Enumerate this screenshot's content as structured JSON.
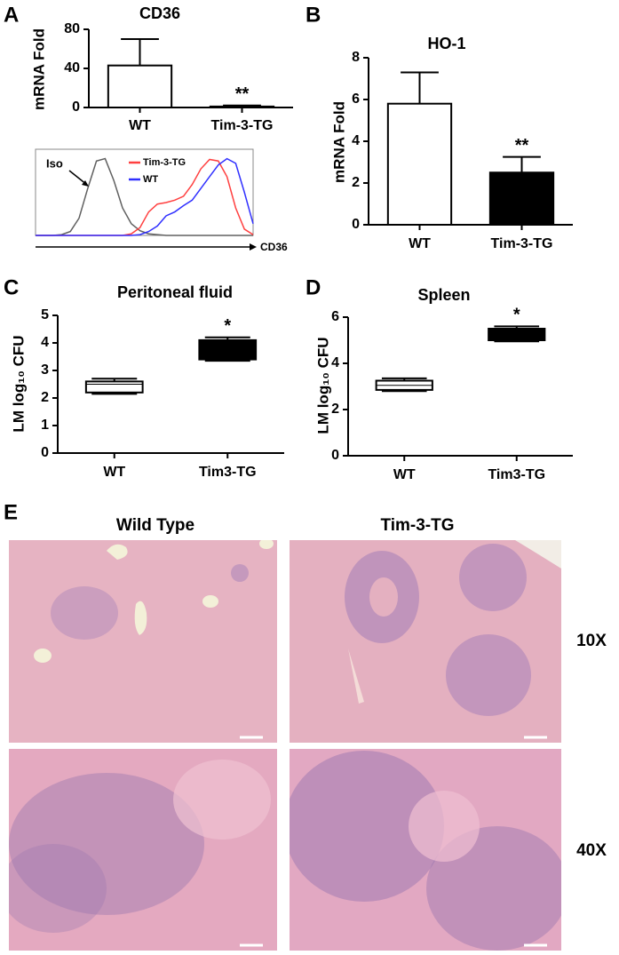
{
  "chart_data": [
    {
      "type": "bar",
      "panel": "A",
      "title": "CD36",
      "ylabel": "mRNA Fold",
      "categories": [
        "WT",
        "Tim-3-TG"
      ],
      "values": [
        43,
        1
      ],
      "errors": [
        27,
        1
      ],
      "colors": [
        "#ffffff",
        "#000000"
      ],
      "significance": [
        null,
        "**"
      ],
      "ylim": [
        0,
        80
      ],
      "yticks": [
        0,
        40,
        80
      ]
    },
    {
      "type": "line",
      "xlabel": "CD36",
      "x": [
        0,
        4,
        8,
        12,
        16,
        20,
        24,
        28,
        32,
        36,
        40,
        44,
        48,
        52,
        56,
        60,
        64,
        68,
        72,
        76,
        80,
        84,
        88,
        92,
        96,
        100
      ],
      "xlim": [
        0,
        100
      ],
      "ylim": [
        0,
        110
      ],
      "series": [
        {
          "name": "Iso",
          "color": "#606060",
          "values": [
            0,
            0,
            0,
            1,
            5,
            22,
            60,
            95,
            98,
            70,
            35,
            15,
            6,
            2,
            1,
            0,
            0,
            0,
            0,
            0,
            0,
            0,
            0,
            0,
            0,
            0
          ]
        },
        {
          "name": "Tim-3-TG",
          "color": "#ff4040",
          "values": [
            0,
            0,
            0,
            0,
            0,
            0,
            0,
            0,
            0,
            0,
            0,
            2,
            10,
            30,
            40,
            42,
            45,
            50,
            65,
            85,
            97,
            95,
            75,
            35,
            8,
            1
          ]
        },
        {
          "name": "WT",
          "color": "#3030ff",
          "values": [
            0,
            0,
            0,
            0,
            0,
            0,
            0,
            0,
            0,
            0,
            0,
            0,
            1,
            5,
            12,
            25,
            30,
            38,
            45,
            60,
            75,
            90,
            98,
            92,
            55,
            15
          ]
        }
      ]
    },
    {
      "type": "bar",
      "panel": "B",
      "title": "HO-1",
      "ylabel": "mRNA Fold",
      "categories": [
        "WT",
        "Tim-3-TG"
      ],
      "values": [
        5.8,
        2.5
      ],
      "errors": [
        1.5,
        0.75
      ],
      "colors": [
        "#ffffff",
        "#000000"
      ],
      "significance": [
        null,
        "**"
      ],
      "ylim": [
        0,
        8
      ],
      "yticks": [
        0,
        2,
        4,
        6,
        8
      ]
    },
    {
      "type": "box",
      "panel": "C",
      "title": "Peritoneal fluid",
      "ylabel": "LM log₁₀ CFU",
      "categories": [
        "WT",
        "Tim3-TG"
      ],
      "boxes": [
        {
          "min": 2.15,
          "q1": 2.2,
          "median": 2.5,
          "q3": 2.6,
          "max": 2.7
        },
        {
          "min": 3.35,
          "q1": 3.4,
          "median": 3.7,
          "q3": 4.1,
          "max": 4.2
        }
      ],
      "colors": [
        "#ffffff",
        "#000000"
      ],
      "significance": [
        null,
        "*"
      ],
      "ylim": [
        0,
        5
      ],
      "yticks": [
        0,
        1,
        2,
        3,
        4,
        5
      ]
    },
    {
      "type": "box",
      "panel": "D",
      "title": "Spleen",
      "ylabel": "LM log₁₀ CFU",
      "categories": [
        "WT",
        "Tim3-TG"
      ],
      "boxes": [
        {
          "min": 2.8,
          "q1": 2.85,
          "median": 3.05,
          "q3": 3.25,
          "max": 3.35
        },
        {
          "min": 4.95,
          "q1": 5.0,
          "median": 5.3,
          "q3": 5.5,
          "max": 5.6
        }
      ],
      "colors": [
        "#ffffff",
        "#000000"
      ],
      "significance": [
        null,
        "*"
      ],
      "ylim": [
        0,
        6
      ],
      "yticks": [
        0,
        2,
        4,
        6
      ]
    }
  ],
  "panel_e": {
    "letter": "E",
    "columns": [
      "Wild Type",
      "Tim-3-TG"
    ],
    "rows": [
      "10X",
      "40X"
    ]
  }
}
